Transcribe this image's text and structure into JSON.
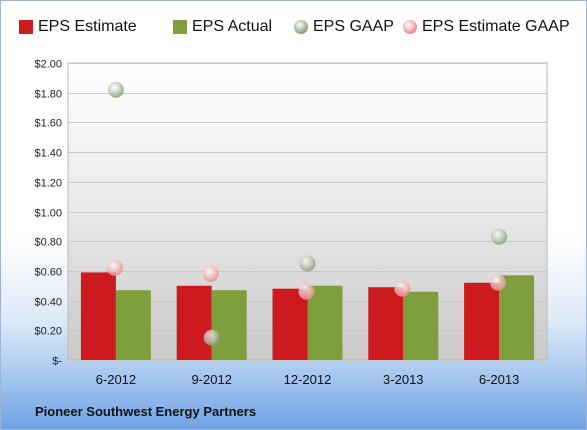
{
  "chart_data": {
    "type": "bar",
    "categories": [
      "6-2012",
      "9-2012",
      "12-2012",
      "3-2013",
      "6-2013"
    ],
    "series": [
      {
        "name": "EPS Estimate",
        "kind": "bar",
        "color": "#cc1a1e",
        "values": [
          0.59,
          0.5,
          0.48,
          0.49,
          0.52
        ]
      },
      {
        "name": "EPS Actual",
        "kind": "bar",
        "color": "#7f9e3e",
        "values": [
          0.47,
          0.47,
          0.5,
          0.46,
          0.57
        ]
      },
      {
        "name": "EPS GAAP",
        "kind": "point",
        "color": "#8c9b7a",
        "values": [
          1.82,
          0.15,
          0.65,
          null,
          0.83
        ]
      },
      {
        "name": "EPS Estimate GAAP",
        "kind": "point",
        "color": "#e98b8e",
        "values": [
          0.62,
          0.58,
          0.46,
          0.48,
          0.52
        ]
      }
    ],
    "y_ticks": [
      "$-",
      "$0.20",
      "$0.40",
      "$0.60",
      "$0.80",
      "$1.00",
      "$1.20",
      "$1.40",
      "$1.60",
      "$1.80",
      "$2.00"
    ],
    "ylim": [
      0,
      2.0
    ],
    "grid": true,
    "legend_position": "top"
  },
  "footer": {
    "company": "Pioneer Southwest Energy Partners"
  }
}
